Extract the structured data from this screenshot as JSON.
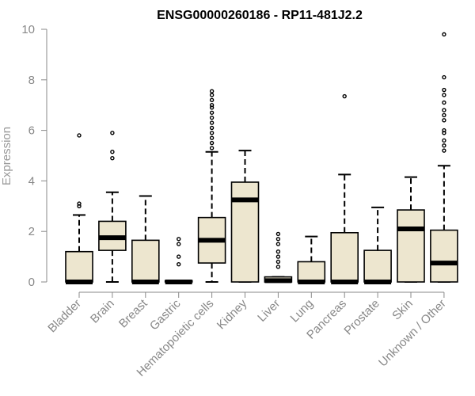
{
  "chart_data": {
    "type": "boxplot",
    "title": "ENSG00000260186 - RP11-481J2.2",
    "xlabel": "",
    "ylabel": "Expression",
    "ylim": [
      0,
      10
    ],
    "yticks": [
      0,
      2,
      4,
      6,
      8,
      10
    ],
    "box_color": "#ede6cf",
    "categories": [
      "Bladder",
      "Brain",
      "Breast",
      "Gastric",
      "Hematopoietic cells",
      "Kidney",
      "Liver",
      "Lung",
      "Pancreas",
      "Prostate",
      "Skin",
      "Unknown / Other"
    ],
    "boxes": [
      {
        "q1": 0,
        "median": 0,
        "q3": 1.2,
        "whisker_low": 0,
        "whisker_high": 2.65,
        "outliers": [
          3.0,
          3.1,
          5.8
        ]
      },
      {
        "q1": 1.25,
        "median": 1.75,
        "q3": 2.4,
        "whisker_low": 0,
        "whisker_high": 3.55,
        "outliers": [
          4.9,
          5.15,
          5.9
        ]
      },
      {
        "q1": 0,
        "median": 0,
        "q3": 1.65,
        "whisker_low": 0,
        "whisker_high": 3.4,
        "outliers": []
      },
      {
        "q1": 0,
        "median": 0,
        "q3": 0.05,
        "whisker_low": 0,
        "whisker_high": 0.05,
        "outliers": [
          0.7,
          1.0,
          1.5,
          1.7
        ]
      },
      {
        "q1": 0.75,
        "median": 1.65,
        "q3": 2.55,
        "whisker_low": 0,
        "whisker_high": 5.15,
        "outliers": [
          5.3,
          5.5,
          5.7,
          5.9,
          6.1,
          6.3,
          6.5,
          6.7,
          6.9,
          7.0,
          7.2,
          7.4,
          7.55
        ]
      },
      {
        "q1": 0,
        "median": 3.25,
        "q3": 3.95,
        "whisker_low": 0,
        "whisker_high": 5.2,
        "outliers": []
      },
      {
        "q1": 0,
        "median": 0.05,
        "q3": 0.2,
        "whisker_low": 0,
        "whisker_high": 0.2,
        "outliers": [
          0.6,
          0.8,
          1.0,
          1.2,
          1.5,
          1.7,
          1.9
        ]
      },
      {
        "q1": 0,
        "median": 0,
        "q3": 0.8,
        "whisker_low": 0,
        "whisker_high": 1.8,
        "outliers": []
      },
      {
        "q1": 0,
        "median": 0,
        "q3": 1.95,
        "whisker_low": 0,
        "whisker_high": 4.25,
        "outliers": [
          7.35
        ]
      },
      {
        "q1": 0,
        "median": 0,
        "q3": 1.25,
        "whisker_low": 0,
        "whisker_high": 2.95,
        "outliers": []
      },
      {
        "q1": 0,
        "median": 2.1,
        "q3": 2.85,
        "whisker_low": 0,
        "whisker_high": 4.15,
        "outliers": []
      },
      {
        "q1": 0,
        "median": 0.75,
        "q3": 2.05,
        "whisker_low": 0,
        "whisker_high": 4.6,
        "outliers": [
          5.2,
          5.4,
          5.6,
          5.9,
          6.0,
          6.4,
          6.6,
          6.8,
          7.1,
          7.4,
          7.6,
          8.1,
          9.8
        ]
      }
    ]
  }
}
